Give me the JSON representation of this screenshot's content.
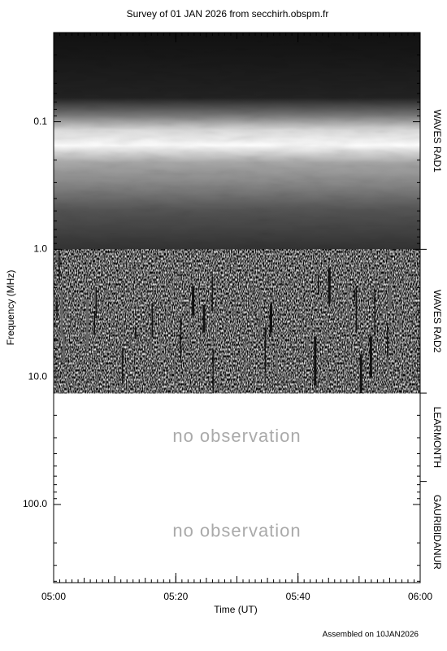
{
  "chart_data": {
    "type": "spectrogram",
    "title": "Survey of 01 JAN 2026 from secchirh.obspm.fr",
    "x_label": "Time (UT)",
    "y_label": "Frequency (MHz)",
    "xlim": [
      300,
      360
    ],
    "xticks": [
      {
        "value": 300,
        "label": "05:00"
      },
      {
        "value": 320,
        "label": "05:20"
      },
      {
        "value": 340,
        "label": "05:40"
      },
      {
        "value": 360,
        "label": "06:00"
      }
    ],
    "ylim": [
      0.02,
      410
    ],
    "log_y": true,
    "y_inverted": true,
    "yticks": [
      0.1,
      {
        "value": 1,
        "label": "1.0"
      },
      {
        "value": 10,
        "label": "10.0"
      },
      {
        "value": 100,
        "label": "100.0"
      }
    ],
    "panels": [
      {
        "name": "WAVES RAD1",
        "range": [
          0.02,
          1
        ]
      },
      {
        "name": "WAVES RAD2",
        "range": [
          1,
          13.4
        ]
      },
      {
        "name": "LEARMONTH",
        "range": [
          13.4,
          66
        ],
        "note": "no observation"
      },
      {
        "name": "GAURIBIDANUR",
        "range": [
          66,
          410
        ],
        "note": "no observation"
      }
    ],
    "footer": "Assembled on 10JAN2026"
  }
}
